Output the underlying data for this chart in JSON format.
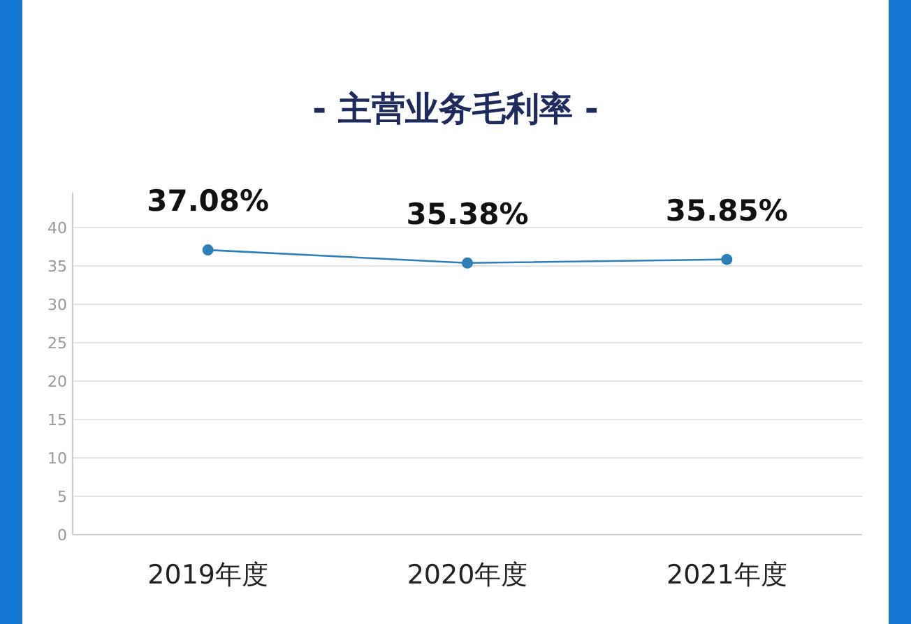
{
  "chart_data": {
    "type": "line",
    "title": "- 主营业务毛利率 -",
    "categories": [
      "2019年度",
      "2020年度",
      "2021年度"
    ],
    "series": [
      {
        "color": "#2e7fb8",
        "values": [
          37.08,
          35.38,
          35.85
        ]
      }
    ],
    "value_labels": [
      "37.08%",
      "35.38%",
      "35.85%"
    ],
    "ylim": [
      0,
      40
    ],
    "yticks": [
      0,
      5,
      10,
      15,
      20,
      25,
      30,
      35,
      40
    ],
    "grid": "y",
    "marker": "circle",
    "line_style": "solid"
  }
}
